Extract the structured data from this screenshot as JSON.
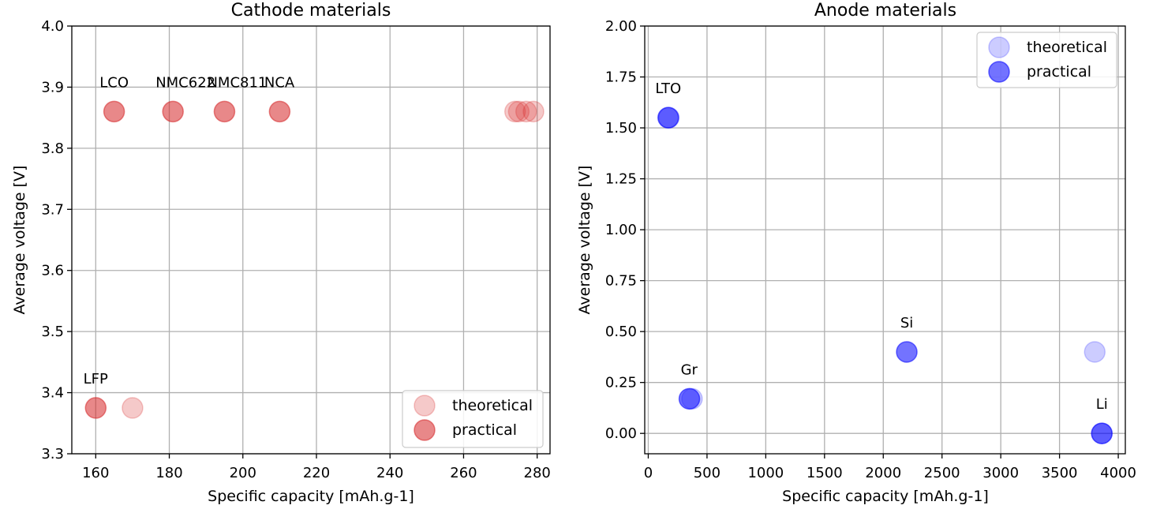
{
  "chart_data": [
    {
      "type": "scatter",
      "title": "Cathode materials",
      "xlabel": "Specific capacity [mAh.g-1]",
      "ylabel": "Average voltage [V]",
      "xlim": [
        153.5,
        283.5
      ],
      "ylim": [
        3.3,
        4.0
      ],
      "xticks": [
        160,
        180,
        200,
        220,
        240,
        260,
        280
      ],
      "yticks": [
        3.3,
        3.4,
        3.5,
        3.6,
        3.7,
        3.8,
        3.9,
        4.0
      ],
      "xtick_labels": [
        "160",
        "180",
        "200",
        "220",
        "240",
        "260",
        "280"
      ],
      "ytick_labels": [
        "3.3",
        "3.4",
        "3.5",
        "3.6",
        "3.7",
        "3.8",
        "3.9",
        "4.0"
      ],
      "grid": true,
      "legend_position": "lower-right",
      "color": "#d62728",
      "series": [
        {
          "name": "theoretical",
          "alpha": 0.25,
          "points": [
            {
              "x": 274,
              "y": 3.86
            },
            {
              "x": 275,
              "y": 3.86
            },
            {
              "x": 277,
              "y": 3.86
            },
            {
              "x": 279,
              "y": 3.86
            },
            {
              "x": 170,
              "y": 3.375
            }
          ]
        },
        {
          "name": "practical",
          "alpha": 0.55,
          "points": [
            {
              "x": 165,
              "y": 3.86
            },
            {
              "x": 181,
              "y": 3.86
            },
            {
              "x": 195,
              "y": 3.86
            },
            {
              "x": 210,
              "y": 3.86
            },
            {
              "x": 160,
              "y": 3.375
            }
          ]
        }
      ],
      "annotations": [
        {
          "text": "LCO",
          "x": 165,
          "y": 3.86
        },
        {
          "text": "NMC622",
          "x": 181,
          "y": 3.86
        },
        {
          "text": "NMC811",
          "x": 195,
          "y": 3.86
        },
        {
          "text": "NCA",
          "x": 210,
          "y": 3.86
        },
        {
          "text": "LFP",
          "x": 160,
          "y": 3.375
        }
      ]
    },
    {
      "type": "scatter",
      "title": "Anode materials",
      "xlabel": "Specific capacity [mAh.g-1]",
      "ylabel": "Average voltage [V]",
      "xlim": [
        -30,
        4060
      ],
      "ylim": [
        -0.1,
        2.0
      ],
      "xticks": [
        0,
        500,
        1000,
        1500,
        2000,
        2500,
        3000,
        3500,
        4000
      ],
      "yticks": [
        0.0,
        0.25,
        0.5,
        0.75,
        1.0,
        1.25,
        1.5,
        1.75,
        2.0
      ],
      "xtick_labels": [
        "0",
        "500",
        "1000",
        "1500",
        "2000",
        "2500",
        "3000",
        "3500",
        "4000"
      ],
      "ytick_labels": [
        "0.00",
        "0.25",
        "0.50",
        "0.75",
        "1.00",
        "1.25",
        "1.50",
        "1.75",
        "2.00"
      ],
      "grid": true,
      "legend_position": "upper-right",
      "color": "#0000ff",
      "series": [
        {
          "name": "theoretical",
          "alpha": 0.2,
          "points": [
            {
              "x": 175,
              "y": 1.55
            },
            {
              "x": 372,
              "y": 0.17
            },
            {
              "x": 3800,
              "y": 0.4
            },
            {
              "x": 3860,
              "y": 0.0
            }
          ]
        },
        {
          "name": "practical",
          "alpha": 0.55,
          "points": [
            {
              "x": 170,
              "y": 1.55
            },
            {
              "x": 350,
              "y": 0.17
            },
            {
              "x": 2200,
              "y": 0.4
            },
            {
              "x": 3860,
              "y": 0.0
            }
          ]
        }
      ],
      "annotations": [
        {
          "text": "LTO",
          "x": 170,
          "y": 1.55
        },
        {
          "text": "Gr",
          "x": 350,
          "y": 0.17
        },
        {
          "text": "Si",
          "x": 2200,
          "y": 0.4
        },
        {
          "text": "Li",
          "x": 3860,
          "y": 0.0
        }
      ]
    }
  ]
}
